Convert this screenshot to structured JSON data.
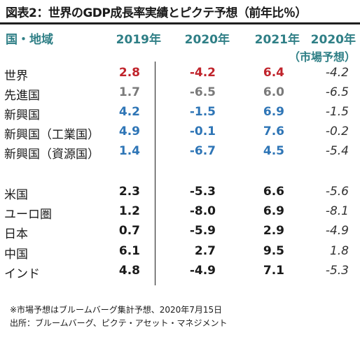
{
  "title": "図表2：世界のGDP成長率実績とピクテ予想（前年比％）",
  "colors": {
    "header": "#2f7f86",
    "world": "#c0232b",
    "developed": "#7a7a7a",
    "emerging": "#2e75b6",
    "default": "#1a1a1a",
    "forecast": "#333333"
  },
  "chart_data": {
    "type": "table",
    "columns": {
      "region": "国・地域",
      "y2019": "2019年",
      "y2020": "2020年",
      "y2021": "2021年",
      "forecast": "2020年",
      "forecast_sub": "（市場予想）"
    },
    "rows": [
      {
        "label": "世界",
        "y2019": "2.8",
        "y2020": "-4.2",
        "y2021": "6.4",
        "forecast": "-4.2",
        "color": "world"
      },
      {
        "label": "先進国",
        "y2019": "1.7",
        "y2020": "-6.5",
        "y2021": "6.0",
        "forecast": "-6.5",
        "color": "developed"
      },
      {
        "label": "新興国",
        "y2019": "4.2",
        "y2020": "-1.5",
        "y2021": "6.9",
        "forecast": "-1.5",
        "color": "emerging"
      },
      {
        "label": "新興国（工業国）",
        "y2019": "4.9",
        "y2020": "-0.1",
        "y2021": "7.6",
        "forecast": "-0.2",
        "color": "emerging"
      },
      {
        "label": "新興国（資源国）",
        "y2019": "1.4",
        "y2020": "-6.7",
        "y2021": "4.5",
        "forecast": "-5.4",
        "color": "emerging"
      },
      {
        "label": "米国",
        "y2019": "2.3",
        "y2020": "-5.3",
        "y2021": "6.6",
        "forecast": "-5.6",
        "color": "default"
      },
      {
        "label": "ユーロ圏",
        "y2019": "1.2",
        "y2020": "-8.0",
        "y2021": "6.9",
        "forecast": "-8.1",
        "color": "default"
      },
      {
        "label": "日本",
        "y2019": "0.7",
        "y2020": "-5.9",
        "y2021": "2.9",
        "forecast": "-4.9",
        "color": "default"
      },
      {
        "label": "中国",
        "y2019": "6.1",
        "y2020": "2.7",
        "y2021": "9.5",
        "forecast": "1.8",
        "color": "default"
      },
      {
        "label": "インド",
        "y2019": "4.8",
        "y2020": "-4.9",
        "y2021": "7.1",
        "forecast": "-5.3",
        "color": "default"
      }
    ]
  },
  "footnotes": [
    "※市場予想はブルームバーグ集計予想、2020年7月15日",
    "出所：ブルームバーグ、ピクテ・アセット・マネジメント"
  ]
}
